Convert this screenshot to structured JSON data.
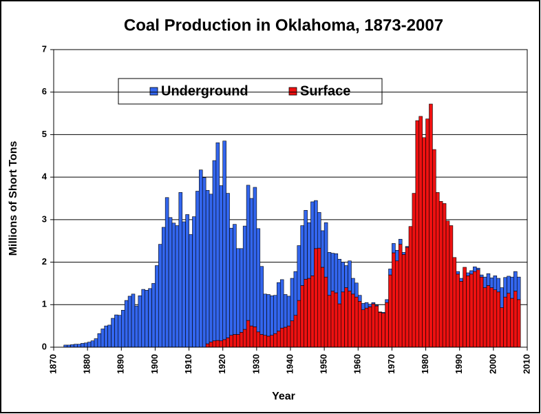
{
  "chart_data": {
    "type": "bar",
    "stacked": true,
    "title": "Coal Production in Oklahoma, 1873-2007",
    "x_label": "Year",
    "y_label": "Millions of Short Tons",
    "x": [
      1873,
      1874,
      1875,
      1876,
      1877,
      1878,
      1879,
      1880,
      1881,
      1882,
      1883,
      1884,
      1885,
      1886,
      1887,
      1888,
      1889,
      1890,
      1891,
      1892,
      1893,
      1894,
      1895,
      1896,
      1897,
      1898,
      1899,
      1900,
      1901,
      1902,
      1903,
      1904,
      1905,
      1906,
      1907,
      1908,
      1909,
      1910,
      1911,
      1912,
      1913,
      1914,
      1915,
      1916,
      1917,
      1918,
      1919,
      1920,
      1921,
      1922,
      1923,
      1924,
      1925,
      1926,
      1927,
      1928,
      1929,
      1930,
      1931,
      1932,
      1933,
      1934,
      1935,
      1936,
      1937,
      1938,
      1939,
      1940,
      1941,
      1942,
      1943,
      1944,
      1945,
      1946,
      1947,
      1948,
      1949,
      1950,
      1951,
      1952,
      1953,
      1954,
      1955,
      1956,
      1957,
      1958,
      1959,
      1960,
      1961,
      1962,
      1963,
      1964,
      1965,
      1966,
      1967,
      1968,
      1969,
      1970,
      1971,
      1972,
      1973,
      1974,
      1975,
      1976,
      1977,
      1978,
      1979,
      1980,
      1981,
      1982,
      1983,
      1984,
      1985,
      1986,
      1987,
      1988,
      1989,
      1990,
      1991,
      1992,
      1993,
      1994,
      1995,
      1996,
      1997,
      1998,
      1999,
      2000,
      2001,
      2002,
      2003,
      2004,
      2005,
      2006,
      2007
    ],
    "series": [
      {
        "name": "Underground",
        "color": "#3366ee",
        "values": [
          0.05,
          0.05,
          0.06,
          0.07,
          0.07,
          0.09,
          0.1,
          0.12,
          0.15,
          0.2,
          0.32,
          0.43,
          0.5,
          0.52,
          0.68,
          0.76,
          0.75,
          0.87,
          1.1,
          1.2,
          1.25,
          0.97,
          1.21,
          1.36,
          1.34,
          1.38,
          1.5,
          1.92,
          2.42,
          2.82,
          3.52,
          3.05,
          2.92,
          2.86,
          3.64,
          2.95,
          3.12,
          2.65,
          3.07,
          3.67,
          4.17,
          3.99,
          3.61,
          3.48,
          4.24,
          4.65,
          3.65,
          4.67,
          3.4,
          2.52,
          2.59,
          2.02,
          1.97,
          2.43,
          3.18,
          3.0,
          3.28,
          2.43,
          1.6,
          0.97,
          0.98,
          0.93,
          0.9,
          1.14,
          1.14,
          0.77,
          0.7,
          1.0,
          1.03,
          1.29,
          1.41,
          1.62,
          1.31,
          1.74,
          1.13,
          0.84,
          0.86,
          1.28,
          1.01,
          0.89,
          0.92,
          1.05,
          0.7,
          0.52,
          0.71,
          0.37,
          0.33,
          0.14,
          0.15,
          0.13,
          0.06,
          0.03,
          0.02,
          0.01,
          0.02,
          0.07,
          0.14,
          0.22,
          0.25,
          0.12,
          0.05,
          0.02,
          0,
          0,
          0,
          0,
          0,
          0,
          0,
          0,
          0,
          0,
          0,
          0,
          0,
          0,
          0.06,
          0.07,
          0,
          0.07,
          0.08,
          0.11,
          0.04,
          0.05,
          0.25,
          0.28,
          0.23,
          0.33,
          0.32,
          0.47,
          0.46,
          0.4,
          0.5,
          0.46,
          0.53
        ]
      },
      {
        "name": "Surface",
        "color": "#ee1111",
        "values": [
          0,
          0,
          0,
          0,
          0,
          0,
          0,
          0,
          0,
          0,
          0,
          0,
          0,
          0,
          0,
          0,
          0,
          0,
          0,
          0,
          0,
          0,
          0,
          0,
          0,
          0,
          0,
          0,
          0,
          0,
          0,
          0,
          0,
          0,
          0,
          0,
          0,
          0,
          0,
          0,
          0,
          0,
          0.08,
          0.12,
          0.15,
          0.16,
          0.15,
          0.18,
          0.22,
          0.28,
          0.3,
          0.3,
          0.35,
          0.42,
          0.63,
          0.5,
          0.48,
          0.36,
          0.3,
          0.28,
          0.26,
          0.28,
          0.32,
          0.38,
          0.45,
          0.47,
          0.5,
          0.62,
          0.75,
          1.1,
          1.45,
          1.6,
          1.62,
          1.68,
          2.32,
          2.33,
          1.88,
          1.65,
          1.22,
          1.32,
          1.28,
          1.02,
          1.3,
          1.4,
          1.32,
          1.25,
          1.18,
          1.08,
          0.88,
          0.92,
          0.95,
          1.02,
          0.97,
          0.82,
          0.8,
          1.05,
          1.7,
          2.22,
          2.03,
          2.42,
          2.18,
          2.35,
          2.84,
          3.62,
          5.33,
          5.43,
          4.93,
          5.37,
          5.72,
          4.65,
          3.64,
          3.43,
          3.38,
          2.97,
          2.86,
          2.11,
          1.72,
          1.55,
          1.88,
          1.68,
          1.72,
          1.78,
          1.82,
          1.65,
          1.4,
          1.45,
          1.4,
          1.35,
          1.3,
          0.93,
          1.18,
          1.27,
          1.15,
          1.32,
          1.12
        ]
      }
    ],
    "xlim": [
      1870,
      2010
    ],
    "xticks": [
      1870,
      1880,
      1890,
      1900,
      1910,
      1920,
      1930,
      1940,
      1950,
      1960,
      1970,
      1980,
      1990,
      2000,
      2010
    ],
    "ylim": [
      0,
      7
    ],
    "yticks": [
      0,
      1,
      2,
      3,
      4,
      5,
      6,
      7
    ],
    "grid": true,
    "legend": "top"
  }
}
